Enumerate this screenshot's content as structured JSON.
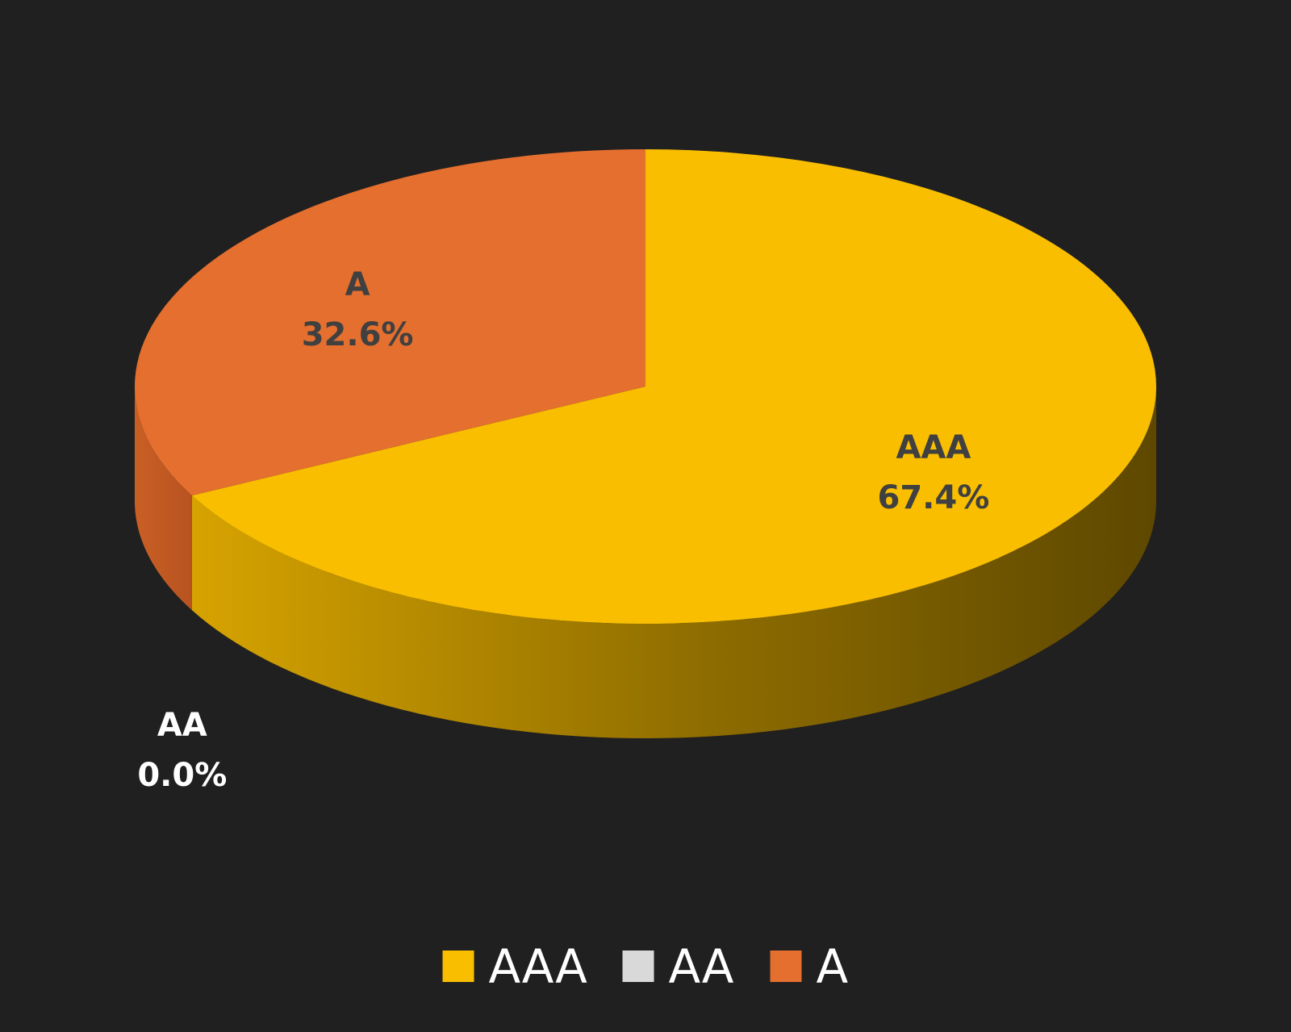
{
  "chart_data": {
    "type": "pie",
    "style": "3d",
    "categories": [
      "AAA",
      "AA",
      "A"
    ],
    "values": [
      67.4,
      0.0,
      32.6
    ],
    "value_labels": [
      "67.4%",
      "0.0%",
      "32.6%"
    ],
    "colors": [
      "#F9BE00",
      "#D9D9D9",
      "#E46F2E"
    ],
    "legend_position": "bottom",
    "title": ""
  }
}
